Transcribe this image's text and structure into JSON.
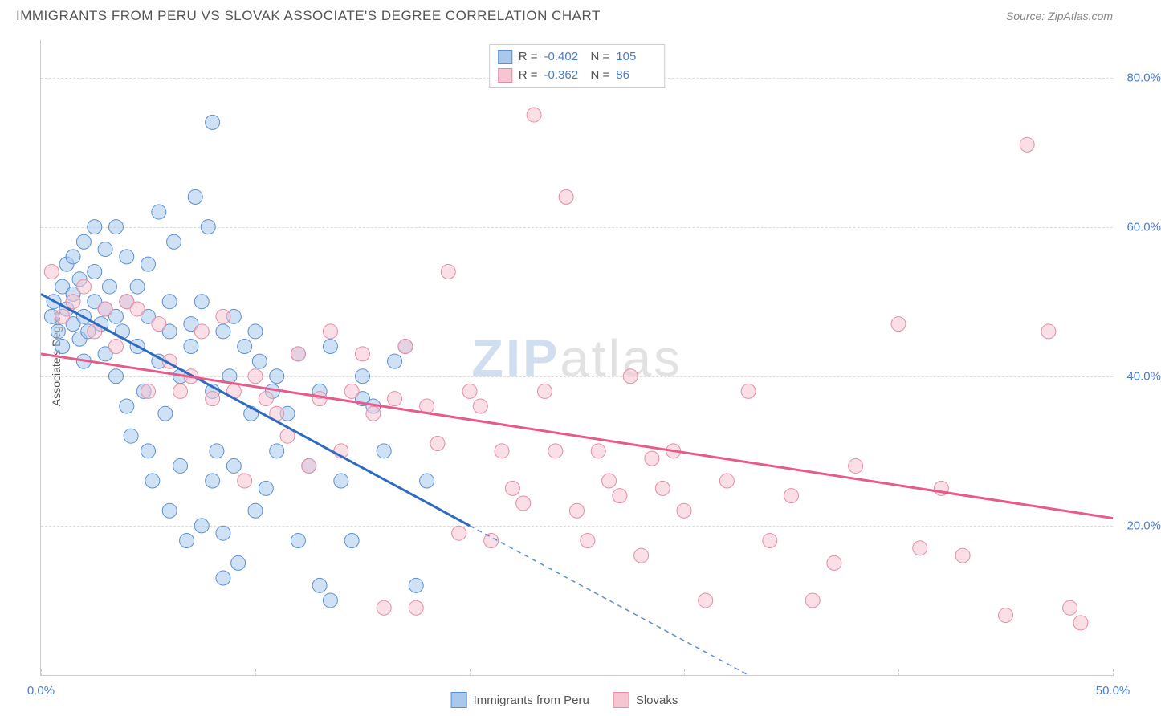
{
  "title": "IMMIGRANTS FROM PERU VS SLOVAK ASSOCIATE'S DEGREE CORRELATION CHART",
  "source": "Source: ZipAtlas.com",
  "watermark": {
    "part1": "ZIP",
    "part2": "atlas"
  },
  "y_axis_label": "Associate's Degree",
  "chart": {
    "type": "scatter",
    "xlim": [
      0,
      50
    ],
    "ylim": [
      0,
      85
    ],
    "xticks": [
      0,
      10,
      20,
      30,
      40,
      50
    ],
    "xtick_labels": [
      "0.0%",
      "",
      "",
      "",
      "",
      "50.0%"
    ],
    "yticks": [
      20,
      40,
      60,
      80
    ],
    "ytick_labels": [
      "20.0%",
      "40.0%",
      "60.0%",
      "80.0%"
    ],
    "background_color": "#ffffff",
    "grid_color": "#dddddd",
    "marker_radius": 9,
    "marker_opacity": 0.55,
    "line_width": 3,
    "series": [
      {
        "name": "Immigrants from Peru",
        "fill_color": "#a8c8ec",
        "stroke_color": "#5b8fd6",
        "line_color": "#2e6bc0",
        "R": "-0.402",
        "N": "105",
        "trend_solid": {
          "x1": 0,
          "y1": 51,
          "x2": 20,
          "y2": 20
        },
        "trend_dashed": {
          "x1": 20,
          "y1": 20,
          "x2": 33,
          "y2": 0
        },
        "points": [
          [
            0.5,
            48
          ],
          [
            0.6,
            50
          ],
          [
            0.8,
            46
          ],
          [
            1.0,
            52
          ],
          [
            1.0,
            44
          ],
          [
            1.2,
            49
          ],
          [
            1.2,
            55
          ],
          [
            1.5,
            47
          ],
          [
            1.5,
            51
          ],
          [
            1.5,
            56
          ],
          [
            1.8,
            45
          ],
          [
            1.8,
            53
          ],
          [
            2.0,
            48
          ],
          [
            2.0,
            42
          ],
          [
            2.0,
            58
          ],
          [
            2.2,
            46
          ],
          [
            2.5,
            50
          ],
          [
            2.5,
            54
          ],
          [
            2.5,
            60
          ],
          [
            2.8,
            47
          ],
          [
            3.0,
            49
          ],
          [
            3.0,
            43
          ],
          [
            3.0,
            57
          ],
          [
            3.2,
            52
          ],
          [
            3.5,
            40
          ],
          [
            3.5,
            48
          ],
          [
            3.5,
            60
          ],
          [
            3.8,
            46
          ],
          [
            4.0,
            36
          ],
          [
            4.0,
            50
          ],
          [
            4.0,
            56
          ],
          [
            4.2,
            32
          ],
          [
            4.5,
            44
          ],
          [
            4.5,
            52
          ],
          [
            4.8,
            38
          ],
          [
            5.0,
            30
          ],
          [
            5.0,
            48
          ],
          [
            5.0,
            55
          ],
          [
            5.2,
            26
          ],
          [
            5.5,
            42
          ],
          [
            5.5,
            62
          ],
          [
            5.8,
            35
          ],
          [
            6.0,
            22
          ],
          [
            6.0,
            46
          ],
          [
            6.0,
            50
          ],
          [
            6.2,
            58
          ],
          [
            6.5,
            28
          ],
          [
            6.5,
            40
          ],
          [
            6.8,
            18
          ],
          [
            7.0,
            44
          ],
          [
            7.0,
            47
          ],
          [
            7.2,
            64
          ],
          [
            7.5,
            20
          ],
          [
            7.5,
            50
          ],
          [
            7.8,
            60
          ],
          [
            8.0,
            38
          ],
          [
            8.0,
            26
          ],
          [
            8.0,
            74
          ],
          [
            8.2,
            30
          ],
          [
            8.5,
            13
          ],
          [
            8.5,
            46
          ],
          [
            8.5,
            19
          ],
          [
            8.8,
            40
          ],
          [
            9.0,
            28
          ],
          [
            9.0,
            48
          ],
          [
            9.2,
            15
          ],
          [
            9.5,
            44
          ],
          [
            9.8,
            35
          ],
          [
            10.0,
            46
          ],
          [
            10.0,
            22
          ],
          [
            10.2,
            42
          ],
          [
            10.5,
            25
          ],
          [
            10.8,
            38
          ],
          [
            11.0,
            30
          ],
          [
            11.0,
            40
          ],
          [
            11.5,
            35
          ],
          [
            12.0,
            43
          ],
          [
            12.0,
            18
          ],
          [
            12.5,
            28
          ],
          [
            13.0,
            38
          ],
          [
            13.0,
            12
          ],
          [
            13.5,
            44
          ],
          [
            13.5,
            10
          ],
          [
            14.0,
            26
          ],
          [
            14.5,
            18
          ],
          [
            15.0,
            37
          ],
          [
            15.0,
            40
          ],
          [
            15.5,
            36
          ],
          [
            16.0,
            30
          ],
          [
            16.5,
            42
          ],
          [
            17.0,
            44
          ],
          [
            17.5,
            12
          ],
          [
            18.0,
            26
          ]
        ]
      },
      {
        "name": "Slovaks",
        "fill_color": "#f5c5d1",
        "stroke_color": "#e98ba4",
        "line_color": "#e85a8a",
        "R": "-0.362",
        "N": "86",
        "trend_solid": {
          "x1": 0,
          "y1": 43,
          "x2": 50,
          "y2": 21
        },
        "trend_dashed": null,
        "points": [
          [
            0.5,
            54
          ],
          [
            1.0,
            48
          ],
          [
            1.5,
            50
          ],
          [
            2.0,
            52
          ],
          [
            2.5,
            46
          ],
          [
            3.0,
            49
          ],
          [
            3.5,
            44
          ],
          [
            4.0,
            50
          ],
          [
            4.5,
            49
          ],
          [
            5.0,
            38
          ],
          [
            5.5,
            47
          ],
          [
            6.0,
            42
          ],
          [
            6.5,
            38
          ],
          [
            7.0,
            40
          ],
          [
            7.5,
            46
          ],
          [
            8.0,
            37
          ],
          [
            8.5,
            48
          ],
          [
            9.0,
            38
          ],
          [
            9.5,
            26
          ],
          [
            10.0,
            40
          ],
          [
            10.5,
            37
          ],
          [
            11.0,
            35
          ],
          [
            11.5,
            32
          ],
          [
            12.0,
            43
          ],
          [
            12.5,
            28
          ],
          [
            13.0,
            37
          ],
          [
            13.5,
            46
          ],
          [
            14.0,
            30
          ],
          [
            14.5,
            38
          ],
          [
            15.0,
            43
          ],
          [
            15.5,
            35
          ],
          [
            16.0,
            9
          ],
          [
            16.5,
            37
          ],
          [
            17.0,
            44
          ],
          [
            17.5,
            9
          ],
          [
            18.0,
            36
          ],
          [
            18.5,
            31
          ],
          [
            19.0,
            54
          ],
          [
            19.5,
            19
          ],
          [
            20.0,
            38
          ],
          [
            20.5,
            36
          ],
          [
            21.0,
            18
          ],
          [
            21.5,
            30
          ],
          [
            22.0,
            25
          ],
          [
            22.5,
            23
          ],
          [
            23.0,
            75
          ],
          [
            23.5,
            38
          ],
          [
            24.0,
            30
          ],
          [
            24.5,
            64
          ],
          [
            25.0,
            22
          ],
          [
            25.5,
            18
          ],
          [
            26.0,
            30
          ],
          [
            26.5,
            26
          ],
          [
            27.0,
            24
          ],
          [
            27.5,
            40
          ],
          [
            28.0,
            16
          ],
          [
            28.5,
            29
          ],
          [
            29.0,
            25
          ],
          [
            29.5,
            30
          ],
          [
            30.0,
            22
          ],
          [
            31.0,
            10
          ],
          [
            32.0,
            26
          ],
          [
            33.0,
            38
          ],
          [
            34.0,
            18
          ],
          [
            35.0,
            24
          ],
          [
            36.0,
            10
          ],
          [
            37.0,
            15
          ],
          [
            38.0,
            28
          ],
          [
            40.0,
            47
          ],
          [
            41.0,
            17
          ],
          [
            42.0,
            25
          ],
          [
            43.0,
            16
          ],
          [
            45.0,
            8
          ],
          [
            46.0,
            71
          ],
          [
            47.0,
            46
          ],
          [
            48.0,
            9
          ],
          [
            48.5,
            7
          ]
        ]
      }
    ]
  },
  "legend": {
    "series1_label": "Immigrants from Peru",
    "series2_label": "Slovaks",
    "R_label": "R =",
    "N_label": "N ="
  }
}
